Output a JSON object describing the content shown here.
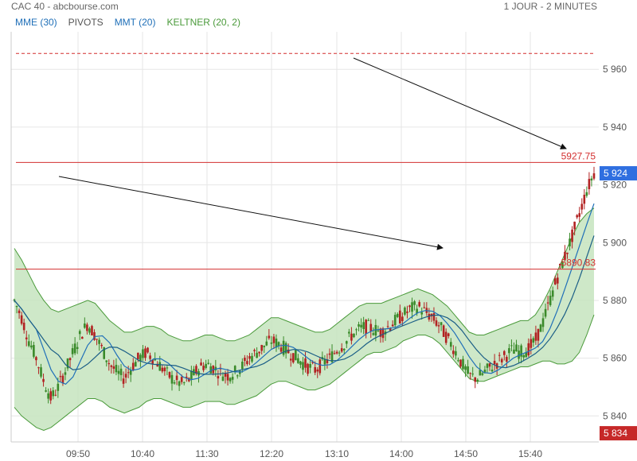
{
  "header": {
    "source": "CAC 40 - abcbourse.com",
    "period": "1 JOUR - 2 MINUTES"
  },
  "legend": [
    {
      "label": "MME (30)",
      "color": "#1f6fb8"
    },
    {
      "label": "PIVOTS",
      "color": "#555555"
    },
    {
      "label": "MMT (20)",
      "color": "#1f6fb8"
    },
    {
      "label": "KELTNER (20, 2)",
      "color": "#4a9a3a"
    }
  ],
  "chart_data": {
    "type": "candlestick",
    "x_ticks": [
      "09:50",
      "10:40",
      "11:30",
      "12:20",
      "13:10",
      "14:00",
      "14:50",
      "15:40"
    ],
    "y_ticks": [
      5840,
      5860,
      5880,
      5900,
      5920,
      5940,
      5960
    ],
    "y_tick_labels": [
      "5 840",
      "5 860",
      "5 880",
      "5 900",
      "5 920",
      "5 940",
      "5 960"
    ],
    "ylim": [
      5831,
      5973
    ],
    "levels": [
      {
        "value": 5927.75,
        "label": "5927.75",
        "color": "#d32f2f",
        "style": "solid"
      },
      {
        "value": 5890.83,
        "label": "5890.83",
        "color": "#d32f2f",
        "style": "solid"
      },
      {
        "value": 5965.5,
        "label": "",
        "color": "#d32f2f",
        "style": "dashed"
      }
    ],
    "badges": [
      {
        "value": 5924,
        "label": "5 924",
        "color": "#2f6fe0"
      },
      {
        "value": 5834,
        "label": "5 834",
        "color": "#c62828"
      }
    ],
    "series_close": [
      5880,
      5874,
      5866,
      5860,
      5852,
      5846,
      5850,
      5856,
      5862,
      5868,
      5872,
      5868,
      5863,
      5858,
      5855,
      5853,
      5857,
      5860,
      5862,
      5860,
      5857,
      5854,
      5852,
      5851,
      5853,
      5856,
      5858,
      5857,
      5855,
      5854,
      5855,
      5857,
      5860,
      5862,
      5864,
      5866,
      5865,
      5863,
      5861,
      5859,
      5857,
      5856,
      5858,
      5860,
      5863,
      5865,
      5868,
      5870,
      5871,
      5870,
      5869,
      5871,
      5873,
      5875,
      5877,
      5878,
      5876,
      5874,
      5871,
      5867,
      5863,
      5858,
      5854,
      5853,
      5855,
      5857,
      5859,
      5861,
      5863,
      5862,
      5863,
      5866,
      5872,
      5880,
      5888,
      5895,
      5902,
      5910,
      5918,
      5924
    ],
    "series_upper": [
      5898,
      5894,
      5889,
      5884,
      5880,
      5877,
      5876,
      5877,
      5878,
      5879,
      5880,
      5879,
      5876,
      5873,
      5871,
      5869,
      5869,
      5870,
      5871,
      5871,
      5870,
      5868,
      5867,
      5866,
      5866,
      5867,
      5868,
      5868,
      5867,
      5866,
      5866,
      5867,
      5868,
      5870,
      5872,
      5874,
      5874,
      5873,
      5872,
      5871,
      5870,
      5869,
      5869,
      5870,
      5872,
      5874,
      5876,
      5878,
      5879,
      5879,
      5879,
      5880,
      5881,
      5882,
      5883,
      5884,
      5883,
      5882,
      5880,
      5878,
      5875,
      5872,
      5869,
      5868,
      5868,
      5869,
      5870,
      5871,
      5872,
      5873,
      5873,
      5875,
      5879,
      5884,
      5890,
      5896,
      5902,
      5907,
      5910,
      5912
    ],
    "series_lower": [
      5843,
      5840,
      5838,
      5836,
      5835,
      5836,
      5838,
      5840,
      5842,
      5844,
      5846,
      5846,
      5845,
      5843,
      5842,
      5841,
      5842,
      5843,
      5845,
      5846,
      5846,
      5845,
      5844,
      5843,
      5843,
      5844,
      5845,
      5845,
      5845,
      5844,
      5844,
      5845,
      5846,
      5847,
      5849,
      5851,
      5852,
      5852,
      5851,
      5850,
      5849,
      5849,
      5850,
      5851,
      5853,
      5855,
      5857,
      5859,
      5861,
      5862,
      5862,
      5863,
      5864,
      5866,
      5867,
      5868,
      5868,
      5867,
      5865,
      5862,
      5859,
      5856,
      5853,
      5852,
      5852,
      5853,
      5854,
      5855,
      5856,
      5857,
      5857,
      5858,
      5859,
      5859,
      5858,
      5858,
      5859,
      5862,
      5868,
      5875
    ]
  }
}
